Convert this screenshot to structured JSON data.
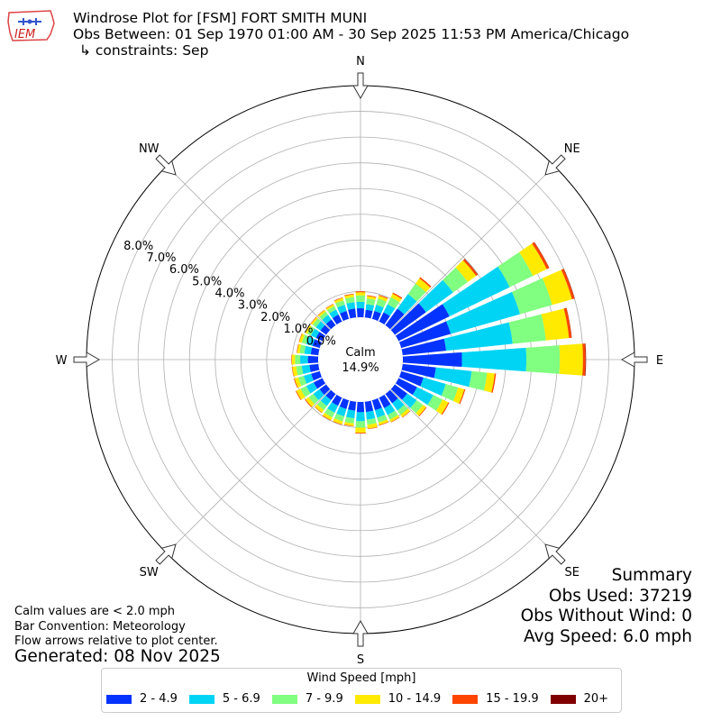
{
  "header": {
    "title": "Windrose Plot for [FSM] FORT SMITH MUNI",
    "obs_between": "Obs Between: 01 Sep 1970 01:00 AM - 30 Sep 2025 11:53 PM America/Chicago",
    "constraints": "↳ constraints: Sep",
    "logo_text": "IEM"
  },
  "summary": {
    "title": "Summary",
    "obs_used": "Obs Used: 37219",
    "obs_without_wind": "Obs Without Wind: 0",
    "avg_speed": "Avg Speed: 6.0 mph"
  },
  "notes": {
    "calm": "Calm values are < 2.0 mph",
    "bar_convention": "Bar Convention: Meteorology",
    "flow": "Flow arrows relative to plot center.",
    "generated": "Generated: 08 Nov 2025"
  },
  "legend": {
    "title": "Wind Speed [mph]"
  },
  "colors": {
    "bins": [
      "#0433ff",
      "#00d4f4",
      "#80ff80",
      "#ffea00",
      "#ff4500",
      "#800000"
    ]
  },
  "chart_data": {
    "type": "windrose",
    "directions": [
      "N",
      "NE",
      "E",
      "SE",
      "S",
      "SW",
      "W",
      "NW"
    ],
    "direction_bin_width_deg": 10,
    "calm": {
      "label": "Calm",
      "value": "14.9%"
    },
    "radial_ticks": [
      "0.0%",
      "1.0%",
      "2.0%",
      "3.0%",
      "4.0%",
      "5.0%",
      "6.0%",
      "7.0%",
      "8.0%"
    ],
    "radial_max_percent": 9.0,
    "speed_bins": [
      "2 - 4.9",
      "5 - 6.9",
      "7 - 9.9",
      "10 - 14.9",
      "15 - 19.9",
      "20+"
    ],
    "sectors": [
      {
        "dir": 0,
        "values": [
          0.35,
          0.25,
          0.25,
          0.12,
          0.04,
          0.0
        ]
      },
      {
        "dir": 10,
        "values": [
          0.3,
          0.22,
          0.22,
          0.1,
          0.03,
          0.0
        ]
      },
      {
        "dir": 20,
        "values": [
          0.32,
          0.25,
          0.25,
          0.12,
          0.03,
          0.0
        ]
      },
      {
        "dir": 30,
        "values": [
          0.4,
          0.35,
          0.3,
          0.15,
          0.05,
          0.0
        ]
      },
      {
        "dir": 40,
        "values": [
          0.8,
          0.7,
          0.5,
          0.25,
          0.06,
          0.0
        ]
      },
      {
        "dir": 50,
        "values": [
          1.5,
          1.3,
          0.7,
          0.4,
          0.08,
          0.01
        ]
      },
      {
        "dir": 60,
        "values": [
          2.2,
          2.6,
          1.0,
          0.6,
          0.1,
          0.01
        ]
      },
      {
        "dir": 70,
        "values": [
          2.0,
          2.8,
          1.3,
          0.8,
          0.1,
          0.01
        ]
      },
      {
        "dir": 80,
        "values": [
          1.7,
          2.6,
          1.3,
          0.9,
          0.1,
          0.01
        ]
      },
      {
        "dir": 90,
        "values": [
          2.3,
          2.5,
          1.3,
          0.9,
          0.1,
          0.02
        ]
      },
      {
        "dir": 100,
        "values": [
          1.3,
          1.4,
          0.6,
          0.3,
          0.05,
          0.0
        ]
      },
      {
        "dir": 110,
        "values": [
          0.9,
          0.9,
          0.5,
          0.25,
          0.04,
          0.0
        ]
      },
      {
        "dir": 120,
        "values": [
          0.8,
          0.7,
          0.4,
          0.25,
          0.04,
          0.0
        ]
      },
      {
        "dir": 130,
        "values": [
          0.6,
          0.45,
          0.3,
          0.15,
          0.03,
          0.0
        ]
      },
      {
        "dir": 140,
        "values": [
          0.45,
          0.35,
          0.2,
          0.12,
          0.02,
          0.0
        ]
      },
      {
        "dir": 150,
        "values": [
          0.45,
          0.3,
          0.2,
          0.1,
          0.02,
          0.0
        ]
      },
      {
        "dir": 160,
        "values": [
          0.4,
          0.3,
          0.2,
          0.1,
          0.02,
          0.0
        ]
      },
      {
        "dir": 170,
        "values": [
          0.4,
          0.3,
          0.2,
          0.15,
          0.02,
          0.0
        ]
      },
      {
        "dir": 180,
        "values": [
          0.4,
          0.35,
          0.25,
          0.2,
          0.03,
          0.0
        ]
      },
      {
        "dir": 190,
        "values": [
          0.35,
          0.3,
          0.2,
          0.1,
          0.02,
          0.0
        ]
      },
      {
        "dir": 200,
        "values": [
          0.35,
          0.3,
          0.2,
          0.12,
          0.02,
          0.0
        ]
      },
      {
        "dir": 210,
        "values": [
          0.35,
          0.3,
          0.2,
          0.12,
          0.02,
          0.0
        ]
      },
      {
        "dir": 220,
        "values": [
          0.3,
          0.28,
          0.2,
          0.12,
          0.02,
          0.0
        ]
      },
      {
        "dir": 230,
        "values": [
          0.32,
          0.3,
          0.22,
          0.15,
          0.03,
          0.0
        ]
      },
      {
        "dir": 240,
        "values": [
          0.38,
          0.32,
          0.25,
          0.18,
          0.03,
          0.0
        ]
      },
      {
        "dir": 250,
        "values": [
          0.35,
          0.3,
          0.22,
          0.15,
          0.03,
          0.0
        ]
      },
      {
        "dir": 260,
        "values": [
          0.35,
          0.3,
          0.22,
          0.15,
          0.02,
          0.0
        ]
      },
      {
        "dir": 270,
        "values": [
          0.4,
          0.3,
          0.2,
          0.12,
          0.02,
          0.0
        ]
      },
      {
        "dir": 280,
        "values": [
          0.3,
          0.25,
          0.18,
          0.1,
          0.02,
          0.0
        ]
      },
      {
        "dir": 290,
        "values": [
          0.3,
          0.25,
          0.18,
          0.1,
          0.02,
          0.0
        ]
      },
      {
        "dir": 300,
        "values": [
          0.28,
          0.22,
          0.15,
          0.1,
          0.02,
          0.0
        ]
      },
      {
        "dir": 310,
        "values": [
          0.28,
          0.22,
          0.15,
          0.08,
          0.02,
          0.0
        ]
      },
      {
        "dir": 320,
        "values": [
          0.28,
          0.22,
          0.15,
          0.08,
          0.02,
          0.0
        ]
      },
      {
        "dir": 330,
        "values": [
          0.3,
          0.22,
          0.15,
          0.08,
          0.02,
          0.0
        ]
      },
      {
        "dir": 340,
        "values": [
          0.32,
          0.25,
          0.18,
          0.1,
          0.02,
          0.0
        ]
      },
      {
        "dir": 350,
        "values": [
          0.35,
          0.25,
          0.2,
          0.1,
          0.03,
          0.0
        ]
      }
    ]
  }
}
